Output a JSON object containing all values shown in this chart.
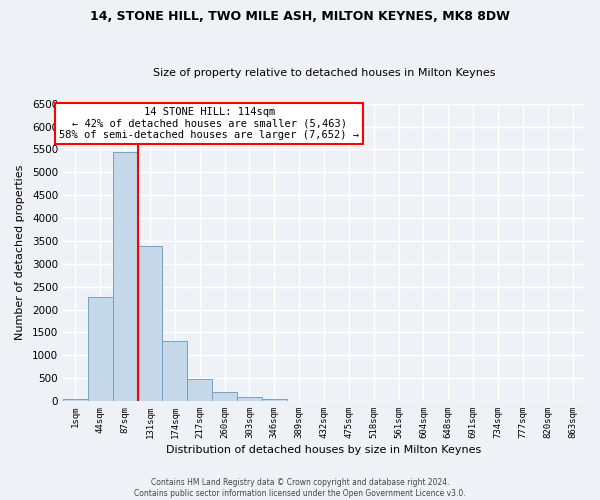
{
  "title": "14, STONE HILL, TWO MILE ASH, MILTON KEYNES, MK8 8DW",
  "subtitle": "Size of property relative to detached houses in Milton Keynes",
  "xlabel": "Distribution of detached houses by size in Milton Keynes",
  "ylabel": "Number of detached properties",
  "bar_labels": [
    "1sqm",
    "44sqm",
    "87sqm",
    "131sqm",
    "174sqm",
    "217sqm",
    "260sqm",
    "303sqm",
    "346sqm",
    "389sqm",
    "432sqm",
    "475sqm",
    "518sqm",
    "561sqm",
    "604sqm",
    "648sqm",
    "691sqm",
    "734sqm",
    "777sqm",
    "820sqm",
    "863sqm"
  ],
  "bar_values": [
    50,
    2280,
    5450,
    3380,
    1320,
    490,
    185,
    95,
    50,
    0,
    0,
    0,
    0,
    0,
    0,
    0,
    0,
    0,
    0,
    0,
    0
  ],
  "bar_color": "#c5d8ea",
  "bar_edge_color": "#7aA0c0",
  "ylim": [
    0,
    6500
  ],
  "yticks": [
    0,
    500,
    1000,
    1500,
    2000,
    2500,
    3000,
    3500,
    4000,
    4500,
    5000,
    5500,
    6000,
    6500
  ],
  "vline_color": "red",
  "vline_pos": 2.5,
  "annotation_title": "14 STONE HILL: 114sqm",
  "annotation_line1": "← 42% of detached houses are smaller (5,463)",
  "annotation_line2": "58% of semi-detached houses are larger (7,652) →",
  "annotation_box_color": "white",
  "annotation_box_edge_color": "red",
  "footer_line1": "Contains HM Land Registry data © Crown copyright and database right 2024.",
  "footer_line2": "Contains public sector information licensed under the Open Government Licence v3.0.",
  "background_color": "#eef2f7",
  "grid_color": "white"
}
